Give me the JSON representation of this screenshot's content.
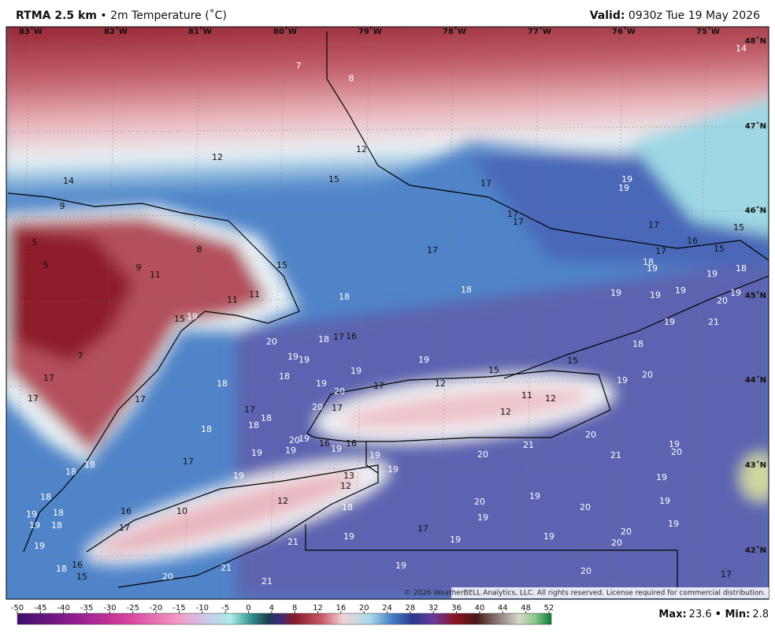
{
  "header": {
    "title": "RTMA 2.5 km",
    "subtitle": "• 2m Temperature (˚C)",
    "valid_label": "Valid:",
    "valid_time": "0930z Tue 19 May 2026"
  },
  "longitudes": [
    "83˚W",
    "82˚W",
    "81˚W",
    "80˚W",
    "79˚W",
    "78˚W",
    "77˚W",
    "76˚W",
    "75˚W"
  ],
  "latitudes": [
    "48˚N",
    "47˚N",
    "46˚N",
    "45˚N",
    "44˚N",
    "43˚N",
    "42˚N"
  ],
  "stations": [
    7,
    8,
    14,
    12,
    12,
    14,
    15,
    17,
    19,
    19,
    9,
    17,
    17,
    17,
    16,
    15,
    5,
    8,
    17,
    17,
    15,
    5,
    9,
    11,
    15,
    18,
    19,
    19,
    18,
    18,
    18,
    11,
    11,
    19,
    19,
    19,
    19,
    20,
    15,
    19,
    19,
    21,
    20,
    18,
    17,
    16,
    18,
    7,
    19,
    19,
    19,
    19,
    18,
    15,
    15,
    17,
    18,
    19,
    17,
    12,
    19,
    20,
    17,
    17,
    20,
    11,
    12,
    17,
    20,
    17,
    12,
    18,
    18,
    18,
    20,
    19,
    16,
    16,
    20,
    21,
    19,
    19,
    19,
    19,
    19,
    20,
    21,
    20,
    17,
    18,
    18,
    19,
    19,
    13,
    12,
    19,
    18,
    12,
    20,
    19,
    19,
    18,
    18,
    19,
    16,
    10,
    19,
    20,
    19,
    18,
    17,
    17,
    19,
    21,
    19,
    19,
    19,
    20,
    20,
    19,
    18,
    16,
    15,
    21,
    19,
    20,
    17,
    20,
    21
  ],
  "copyright": "© 2026 WeatherBELL Analytics, LLC. All rights reserved. License required for commercial distribution.",
  "colorbar_ticks": [
    -50,
    -45,
    -40,
    -35,
    -30,
    -25,
    -20,
    -15,
    -10,
    -5,
    0,
    4,
    8,
    12,
    16,
    20,
    24,
    28,
    32,
    36,
    40,
    44,
    48,
    52
  ],
  "footer": {
    "max_label": "Max:",
    "max": 23.6,
    "min_label": "• Min:",
    "min": 2.8
  }
}
